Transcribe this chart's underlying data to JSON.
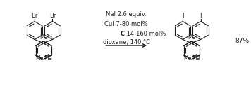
{
  "bg_color": "#ffffff",
  "line_color": "#1a1a1a",
  "reagents_line1": "NaI 2.6 equiv.",
  "reagents_line2": "CuI 7-80 mol%",
  "reagents_line3_bold": "C",
  "reagents_line3_rest": " 14-160 mol%",
  "reagents_line4": "dioxane, 140 °C",
  "yield_text": "87%",
  "figsize": [
    3.56,
    1.3
  ],
  "dpi": 100
}
